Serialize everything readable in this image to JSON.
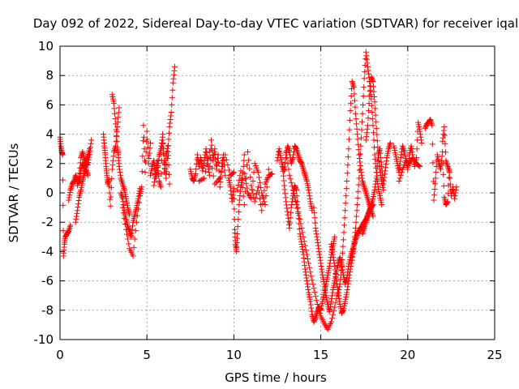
{
  "chart_data": {
    "type": "scatter",
    "title": "Day 092 of 2022, Sidereal Day-to-day VTEC variation (SDTVAR) for receiver iqal",
    "xlabel": "GPS time / hours",
    "ylabel": "SDTVAR / TECUs",
    "xlim": [
      0,
      25
    ],
    "ylim": [
      -10,
      10
    ],
    "xticks": [
      "0",
      "5",
      "10",
      "15",
      "20",
      "25"
    ],
    "yticks": [
      "-10",
      "-8",
      "-6",
      "-4",
      "-2",
      "0",
      "2",
      "4",
      "6",
      "8",
      "10"
    ],
    "grid": true,
    "marker": "+",
    "color": "#ff0000",
    "series": [
      {
        "name": "SDTVAR",
        "segments": [
          {
            "x": [
              0.0,
              0.05,
              0.1,
              0.15,
              0.2,
              0.25,
              0.3,
              0.4,
              0.5,
              0.6
            ],
            "y": [
              3.8,
              3.2,
              2.8,
              2.6,
              -4.3,
              -3.5,
              -3.0,
              -2.8,
              -2.6,
              -2.2
            ]
          },
          {
            "x": [
              0.5,
              0.6,
              0.7,
              0.8,
              0.9,
              1.0,
              1.1,
              1.2,
              1.3,
              1.4,
              1.5,
              1.6,
              1.7
            ],
            "y": [
              -0.5,
              0.2,
              0.6,
              0.8,
              1.2,
              0.9,
              0.7,
              1.5,
              2.0,
              1.7,
              2.2,
              2.5,
              3.0
            ]
          },
          {
            "x": [
              0.9,
              1.0,
              1.1,
              1.2,
              1.3,
              1.4,
              1.5,
              1.6
            ],
            "y": [
              -2.0,
              -1.2,
              -0.3,
              0.2,
              0.8,
              1.3,
              1.6,
              1.2
            ]
          },
          {
            "x": [
              1.0,
              1.1,
              1.2,
              1.3,
              1.4,
              1.5,
              1.6,
              1.7,
              1.8
            ],
            "y": [
              0.5,
              1.0,
              2.4,
              2.8,
              2.3,
              2.0,
              1.9,
              2.6,
              3.6
            ]
          },
          {
            "x": [
              2.5,
              2.55,
              2.6,
              2.65,
              2.7,
              2.75,
              2.8,
              2.9,
              3.0,
              3.1,
              3.2,
              3.3,
              3.4
            ],
            "y": [
              4.0,
              3.2,
              2.6,
              1.8,
              1.2,
              0.6,
              0.9,
              -0.9,
              1.6,
              2.8,
              3.2,
              4.5,
              5.8
            ]
          },
          {
            "x": [
              3.0,
              3.1,
              3.2,
              3.3,
              3.35,
              3.4,
              3.5,
              3.6,
              3.7,
              3.8,
              3.9,
              4.0
            ],
            "y": [
              6.7,
              6.1,
              4.7,
              3.1,
              2.6,
              1.8,
              1.0,
              0.6,
              0.2,
              -0.4,
              -1.0,
              -1.5
            ]
          },
          {
            "x": [
              3.5,
              3.6,
              3.7,
              3.8,
              3.9,
              4.0,
              4.1,
              4.2,
              4.3,
              4.4,
              4.5,
              4.6
            ],
            "y": [
              0.0,
              -0.4,
              -1.2,
              -1.8,
              -2.3,
              -2.6,
              -3.0,
              -2.0,
              -1.5,
              -1.0,
              -0.4,
              0.3
            ]
          },
          {
            "x": [
              3.6,
              3.8,
              4.0,
              4.2,
              4.4,
              4.6
            ],
            "y": [
              -1.0,
              -2.5,
              -3.8,
              -4.3,
              -2.0,
              -0.2
            ]
          },
          {
            "x": [
              4.6,
              4.7,
              4.8,
              4.9,
              5.0,
              5.1,
              5.2
            ],
            "y": [
              -0.2,
              0.4,
              4.6,
              1.4,
              4.2,
              2.0,
              3.4
            ]
          },
          {
            "x": [
              5.2,
              5.3,
              5.4,
              5.5,
              5.6,
              5.7,
              5.8,
              5.9,
              6.0,
              6.1,
              6.2,
              6.3,
              6.4,
              6.5,
              6.6
            ],
            "y": [
              1.2,
              1.8,
              2.2,
              1.0,
              1.5,
              2.5,
              3.0,
              3.8,
              2.2,
              1.0,
              2.8,
              4.5,
              5.5,
              7.5,
              8.6
            ]
          },
          {
            "x": [
              5.4,
              5.5,
              5.6,
              5.7,
              5.8,
              5.9,
              6.0,
              6.1,
              6.2,
              6.3
            ],
            "y": [
              0.5,
              1.5,
              2.2,
              0.8,
              0.4,
              4.0,
              1.4,
              2.5,
              3.2,
              0.6
            ]
          },
          {
            "x": [
              7.5,
              7.6,
              7.7,
              7.8,
              7.9,
              8.0,
              8.1,
              8.2,
              8.3,
              8.4,
              8.5,
              8.6,
              8.7,
              8.8,
              8.9,
              9.0,
              9.1,
              9.2,
              9.3,
              9.4,
              9.5
            ],
            "y": [
              1.6,
              1.0,
              0.8,
              1.3,
              2.6,
              1.8,
              2.4,
              1.5,
              2.2,
              3.0,
              2.0,
              1.2,
              3.6,
              2.2,
              3.0,
              1.6,
              2.6,
              0.4,
              1.8,
              2.6,
              1.2
            ]
          },
          {
            "x": [
              8.0,
              8.3,
              8.6,
              8.9,
              9.2,
              9.5,
              9.8,
              10.0
            ],
            "y": [
              0.8,
              1.0,
              2.8,
              0.6,
              1.0,
              2.6,
              1.2,
              1.4
            ]
          },
          {
            "x": [
              9.7,
              9.8,
              9.9,
              10.0,
              10.05,
              10.1,
              10.15,
              10.2,
              10.3,
              10.4,
              10.5,
              10.6
            ],
            "y": [
              1.0,
              0.4,
              -0.6,
              0.3,
              -2.5,
              -3.5,
              -4.0,
              -2.8,
              -0.8,
              0.4,
              1.0,
              2.6
            ]
          },
          {
            "x": [
              10.2,
              10.4,
              10.6,
              10.8,
              11.0,
              11.2,
              11.4,
              11.6,
              11.8,
              12.0,
              12.2
            ],
            "y": [
              0.2,
              1.5,
              -0.8,
              2.8,
              0.5,
              -0.6,
              0.4,
              -1.2,
              0.6,
              1.2,
              1.3
            ]
          },
          {
            "x": [
              10.6,
              10.8,
              11.0,
              11.2,
              11.4,
              11.6,
              11.8,
              12.0
            ],
            "y": [
              1.3,
              0.0,
              -0.4,
              2.0,
              1.4,
              0.0,
              -0.8,
              1.6
            ]
          },
          {
            "x": [
              12.5,
              12.6,
              12.7,
              12.8,
              12.9,
              13.0,
              13.1,
              13.2,
              13.3,
              13.4,
              13.5,
              13.6,
              13.7,
              13.8,
              13.9,
              14.0,
              14.1,
              14.2,
              14.3,
              14.4,
              14.5
            ],
            "y": [
              2.2,
              3.0,
              2.4,
              1.8,
              1.5,
              2.6,
              3.2,
              2.8,
              2.0,
              2.4,
              3.2,
              3.0,
              2.6,
              2.2,
              2.0,
              1.6,
              1.2,
              0.8,
              0.2,
              -0.6,
              -1.2
            ]
          },
          {
            "x": [
              12.8,
              12.9,
              13.0,
              13.1,
              13.2,
              13.3,
              13.4,
              13.5,
              13.6,
              13.7,
              13.8,
              13.9,
              14.0,
              14.1,
              14.2,
              14.3,
              14.4,
              14.5,
              14.6,
              14.7,
              14.8,
              14.9,
              15.0,
              15.1,
              15.2,
              15.3,
              15.4,
              15.5,
              15.6,
              15.7,
              15.8
            ],
            "y": [
              1.8,
              0.5,
              -0.6,
              -1.5,
              -2.4,
              -1.0,
              -0.2,
              0.5,
              0.2,
              -1.4,
              -2.8,
              -3.5,
              -4.2,
              -5.2,
              -6.0,
              -6.8,
              -7.4,
              -8.3,
              -8.8,
              -8.5,
              -8.1,
              -7.8,
              -8.0,
              -7.4,
              -6.8,
              -6.2,
              -5.6,
              -5.0,
              -4.2,
              -3.6,
              -3.0
            ]
          },
          {
            "x": [
              13.0,
              13.2,
              13.4,
              13.6,
              13.8,
              14.0,
              14.2,
              14.4,
              14.6,
              14.8,
              15.0,
              15.2,
              15.4,
              15.6,
              15.8,
              16.0
            ],
            "y": [
              2.8,
              1.2,
              0.2,
              -0.8,
              -1.8,
              -3.0,
              -4.2,
              -5.4,
              -6.5,
              -7.6,
              -8.4,
              -8.9,
              -9.3,
              -8.8,
              -7.8,
              -6.6
            ]
          },
          {
            "x": [
              14.6,
              14.7,
              14.8,
              14.9,
              15.0,
              15.1,
              15.2,
              15.3,
              15.4,
              15.5,
              15.6,
              15.7,
              15.8,
              15.9,
              16.0,
              16.1,
              16.2,
              16.3,
              16.4,
              16.5,
              16.6,
              16.7,
              16.8,
              16.9,
              17.0,
              17.1,
              17.2,
              17.3,
              17.4,
              17.5,
              17.6,
              17.7,
              17.8,
              17.9,
              18.0
            ],
            "y": [
              -1.0,
              -2.4,
              -3.2,
              -4.0,
              -4.8,
              -5.6,
              -6.2,
              -7.0,
              -7.6,
              -8.1,
              -7.4,
              -6.6,
              -6.0,
              -5.4,
              -4.8,
              -4.4,
              -4.9,
              -5.6,
              -6.2,
              -5.8,
              -5.0,
              -4.4,
              -4.0,
              -3.6,
              -3.2,
              -2.8,
              -2.6,
              -2.4,
              -2.2,
              -2.0,
              -1.8,
              -1.5,
              -1.2,
              -1.0,
              -0.8
            ]
          },
          {
            "x": [
              15.6,
              15.7,
              15.8,
              15.9,
              16.0,
              16.1,
              16.2,
              16.3,
              16.4,
              16.5,
              16.6,
              16.7,
              16.8,
              16.9,
              17.0
            ],
            "y": [
              -3.5,
              -4.2,
              -5.0,
              -6.0,
              -6.8,
              -7.6,
              -8.2,
              -8.0,
              -7.4,
              -6.8,
              -6.0,
              -5.2,
              -4.4,
              -3.6,
              -3.0
            ]
          },
          {
            "x": [
              16.0,
              16.1,
              16.2,
              16.3,
              16.4,
              16.5,
              16.6,
              16.7,
              16.8,
              16.9,
              17.0,
              17.1,
              17.2,
              17.3,
              17.4,
              17.5,
              17.6,
              17.7,
              17.8,
              17.9,
              18.0
            ],
            "y": [
              -7.0,
              -6.2,
              -5.0,
              -3.2,
              -1.2,
              0.8,
              3.0,
              5.6,
              7.6,
              7.2,
              5.4,
              4.0,
              2.6,
              1.6,
              0.8,
              0.4,
              0.0,
              -0.4,
              -0.8,
              -1.2,
              -1.6
            ]
          },
          {
            "x": [
              16.8,
              16.9,
              17.0,
              17.1,
              17.2,
              17.3,
              17.4,
              17.5,
              17.6,
              17.7,
              17.8,
              17.9,
              18.0,
              18.1,
              18.2,
              18.3,
              18.4,
              18.5
            ],
            "y": [
              -4.6,
              -3.6,
              -2.4,
              -0.8,
              1.0,
              3.2,
              5.4,
              7.8,
              9.6,
              8.6,
              7.6,
              6.4,
              4.6,
              2.6,
              1.4,
              0.4,
              -0.2,
              -0.8
            ]
          },
          {
            "x": [
              17.6,
              17.7,
              17.8,
              17.9,
              18.0,
              18.1,
              18.2,
              18.3,
              18.4,
              18.5,
              18.6
            ],
            "y": [
              3.6,
              4.6,
              6.6,
              7.9,
              7.6,
              6.2,
              4.4,
              2.7,
              1.6,
              0.8,
              0.2
            ]
          },
          {
            "x": [
              17.4,
              17.5,
              17.6,
              17.7,
              17.8,
              17.9,
              18.0,
              18.1,
              18.2,
              18.3,
              18.4,
              18.5,
              18.6,
              18.7,
              18.8,
              18.9,
              19.0
            ],
            "y": [
              -2.8,
              -2.4,
              -2.0,
              -1.6,
              -1.2,
              -0.8,
              -0.4,
              0.2,
              1.0,
              2.6,
              3.0,
              1.8,
              0.6,
              1.5,
              2.4,
              3.0,
              3.4
            ]
          },
          {
            "x": [
              19.2,
              19.3,
              19.4,
              19.5,
              19.6,
              19.7,
              19.8,
              19.9,
              20.0,
              20.1,
              20.2,
              20.3,
              20.4,
              20.5,
              20.6,
              20.7,
              20.8
            ],
            "y": [
              3.2,
              2.6,
              2.0,
              1.4,
              2.4,
              3.2,
              2.8,
              2.2,
              1.6,
              2.6,
              3.2,
              2.4,
              1.8,
              2.4,
              4.8,
              4.2,
              3.4
            ]
          },
          {
            "x": [
              19.5,
              19.7,
              19.9,
              20.1,
              20.3,
              20.5,
              20.7
            ],
            "y": [
              0.8,
              1.6,
              2.2,
              2.0,
              2.4,
              2.0,
              1.8
            ]
          },
          {
            "x": [
              21.0,
              21.1,
              21.2,
              21.3,
              21.4,
              21.5,
              21.6,
              21.7,
              21.8,
              21.9,
              22.0,
              22.1,
              22.2,
              22.3,
              22.4
            ],
            "y": [
              4.4,
              4.7,
              4.8,
              5.0,
              4.6,
              -0.5,
              1.0,
              2.6,
              2.0,
              1.6,
              2.8,
              -0.3,
              -0.8,
              -0.6,
              1.6
            ]
          },
          {
            "x": [
              22.0,
              22.1,
              22.2,
              22.3,
              22.4,
              22.5,
              22.6,
              22.7,
              22.8
            ],
            "y": [
              3.5,
              4.5,
              2.2,
              1.8,
              1.4,
              -0.2,
              0.4,
              -0.4,
              0.4
            ]
          }
        ]
      }
    ]
  }
}
